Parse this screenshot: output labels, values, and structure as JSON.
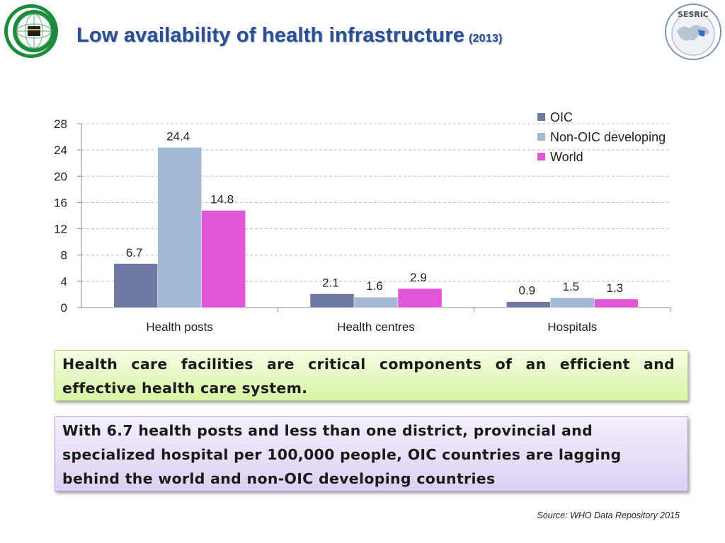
{
  "header": {
    "title": "Low availability of health infrastructure",
    "year": "(2013)",
    "right_logo_text": "SESRIC"
  },
  "colors": {
    "title": "#2a4f93",
    "oic": "#6e78a3",
    "non_oic": "#a3b9d3",
    "world": "#e056d6"
  },
  "chart_data": {
    "type": "bar",
    "categories": [
      "Health posts",
      "Health centres",
      "Hospitals"
    ],
    "series": [
      {
        "name": "OIC",
        "values": [
          6.7,
          2.1,
          0.9
        ],
        "labels": [
          "6.7",
          "2.1",
          "0.9"
        ]
      },
      {
        "name": "Non-OIC developing",
        "values": [
          24.4,
          1.6,
          1.5
        ],
        "labels": [
          "24.4",
          "1.6",
          "1.5"
        ]
      },
      {
        "name": "World",
        "values": [
          14.8,
          2.9,
          1.3
        ],
        "labels": [
          "14.8",
          "2.9",
          "1.3"
        ]
      }
    ],
    "yticks": [
      "0",
      "4",
      "8",
      "12",
      "16",
      "20",
      "24",
      "28"
    ],
    "ylim": [
      0,
      28
    ],
    "grid": true,
    "legend_position": "top-right"
  },
  "notes": {
    "box1": "Health care facilities are critical components of an efficient and effective  health care system.",
    "box2_lines": [
      "With 6.7 health posts and less than one district, provincial and",
      "specialized hospital per 100,000 people, OIC countries are lagging",
      "behind the world and non-OIC developing countries"
    ]
  },
  "source": "Source: WHO Data Repository 2015"
}
